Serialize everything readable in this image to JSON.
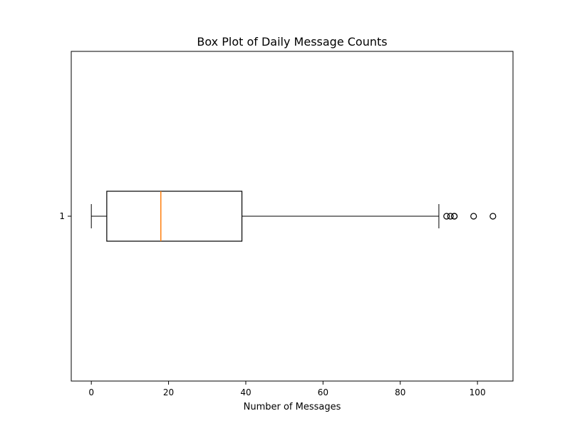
{
  "chart_data": {
    "type": "box",
    "orientation": "horizontal",
    "title": "Box Plot of Daily Message Counts",
    "xlabel": "Number of Messages",
    "ylabel": "",
    "xlim": [
      -5.2,
      109.2
    ],
    "x_ticks": [
      0,
      20,
      40,
      60,
      80,
      100
    ],
    "y_ticks": [
      "1"
    ],
    "grid": false,
    "boxes": [
      {
        "label": "1",
        "whisker_low": 0,
        "q1": 4,
        "median": 18,
        "q3": 39,
        "whisker_high": 90,
        "outliers": [
          92,
          93,
          94,
          94,
          99,
          104
        ]
      }
    ],
    "colors": {
      "box": "#000000",
      "median": "#ff7f0e",
      "whisker": "#000000",
      "outlier_edge": "#000000"
    }
  }
}
